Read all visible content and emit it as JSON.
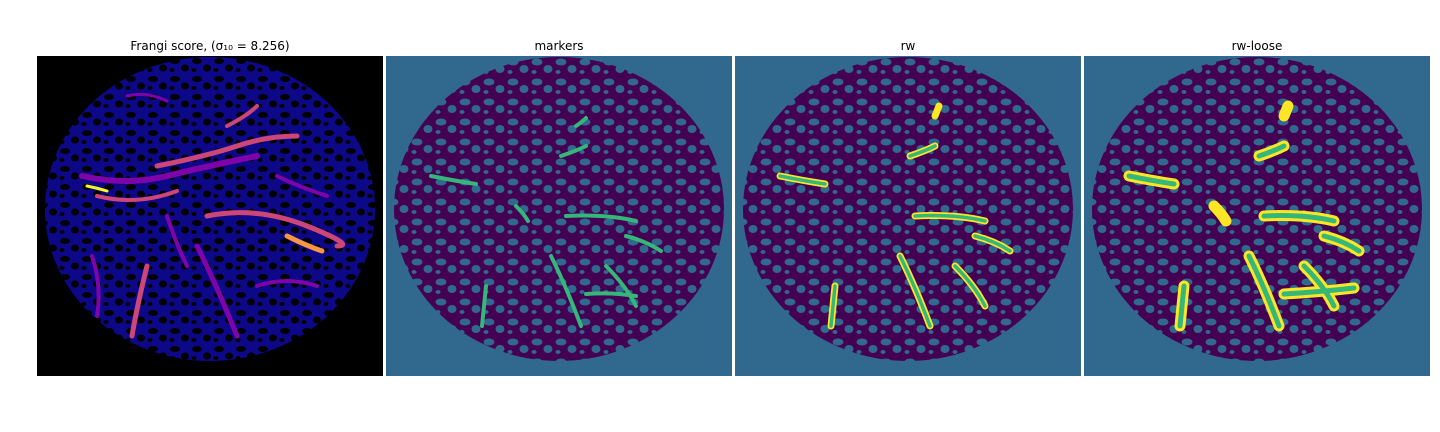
{
  "panels": [
    {
      "title": "Frangi score, (σ₁₀ = 8.256)"
    },
    {
      "title": "markers"
    },
    {
      "title": "rw"
    },
    {
      "title": "rw-loose"
    }
  ],
  "colors": {
    "background_black": "#000000",
    "viridis_dark": "#440154",
    "viridis_blue": "#31688e",
    "viridis_green": "#35b779",
    "viridis_yellow": "#fde725",
    "plasma_dark": "#0d0887",
    "plasma_purple": "#7e03a8",
    "plasma_pink": "#cc4778",
    "plasma_orange": "#f89540",
    "plasma_yellow": "#f0f921"
  }
}
